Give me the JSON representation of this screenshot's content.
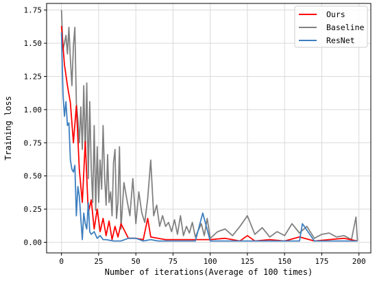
{
  "chart_data": {
    "type": "line",
    "xlabel": "Number of iterations(Average of 100 times)",
    "ylabel": "Training loss",
    "xlim": [
      -10,
      208
    ],
    "ylim": [
      -0.08,
      1.8
    ],
    "xticks": [
      "0",
      "25",
      "50",
      "75",
      "100",
      "125",
      "150",
      "175",
      "200"
    ],
    "yticks": [
      "0.00",
      "0.25",
      "0.50",
      "0.75",
      "1.00",
      "1.25",
      "1.50",
      "1.75"
    ],
    "grid": true,
    "legend_position": "top-right",
    "series": [
      {
        "name": "Ours",
        "color": "#ff0000",
        "x": [
          0,
          2,
          4,
          6,
          8,
          10,
          12,
          14,
          16,
          18,
          20,
          22,
          24,
          26,
          28,
          30,
          32,
          34,
          36,
          38,
          40,
          45,
          50,
          55,
          58,
          60,
          65,
          70,
          80,
          90,
          100,
          110,
          120,
          125,
          130,
          140,
          150,
          160,
          170,
          180,
          190,
          199
        ],
        "y": [
          1.63,
          1.34,
          1.18,
          1.05,
          0.75,
          1.03,
          0.55,
          0.3,
          0.76,
          0.22,
          0.32,
          0.1,
          0.25,
          0.08,
          0.18,
          0.05,
          0.16,
          0.02,
          0.12,
          0.04,
          0.14,
          0.03,
          0.03,
          0.02,
          0.18,
          0.04,
          0.03,
          0.02,
          0.02,
          0.02,
          0.02,
          0.03,
          0.01,
          0.05,
          0.01,
          0.02,
          0.01,
          0.04,
          0.01,
          0.02,
          0.03,
          0.01
        ]
      },
      {
        "name": "Baseline",
        "color": "#808080",
        "x": [
          0,
          1,
          2,
          3,
          4,
          5,
          6,
          7,
          8,
          9,
          10,
          11,
          12,
          13,
          14,
          15,
          16,
          17,
          18,
          19,
          20,
          21,
          22,
          23,
          24,
          25,
          26,
          27,
          28,
          29,
          30,
          31,
          32,
          33,
          34,
          35,
          36,
          37,
          38,
          39,
          40,
          42,
          44,
          46,
          48,
          50,
          52,
          54,
          56,
          58,
          60,
          62,
          64,
          66,
          68,
          70,
          72,
          74,
          76,
          78,
          80,
          82,
          84,
          86,
          88,
          90,
          92,
          94,
          96,
          98,
          100,
          105,
          110,
          115,
          120,
          125,
          130,
          135,
          140,
          145,
          150,
          155,
          160,
          165,
          170,
          175,
          180,
          185,
          190,
          195,
          198,
          199
        ],
        "y": [
          1.75,
          1.45,
          1.5,
          1.56,
          1.42,
          1.62,
          1.38,
          1.18,
          1.48,
          1.62,
          1.05,
          0.93,
          0.75,
          1.02,
          0.7,
          1.18,
          0.66,
          1.2,
          0.48,
          1.06,
          0.56,
          0.3,
          0.88,
          0.24,
          0.72,
          0.3,
          0.62,
          0.4,
          0.88,
          0.5,
          0.28,
          0.66,
          0.3,
          0.38,
          0.2,
          0.6,
          0.7,
          0.18,
          0.3,
          0.72,
          0.1,
          0.45,
          0.32,
          0.2,
          0.48,
          0.14,
          0.38,
          0.22,
          0.15,
          0.33,
          0.62,
          0.2,
          0.28,
          0.12,
          0.2,
          0.12,
          0.15,
          0.08,
          0.17,
          0.06,
          0.2,
          0.05,
          0.12,
          0.07,
          0.15,
          0.04,
          0.09,
          0.14,
          0.05,
          0.18,
          0.03,
          0.08,
          0.1,
          0.05,
          0.12,
          0.2,
          0.06,
          0.11,
          0.04,
          0.08,
          0.05,
          0.14,
          0.07,
          0.12,
          0.03,
          0.06,
          0.07,
          0.04,
          0.05,
          0.02,
          0.19,
          0.01
        ]
      },
      {
        "name": "ResNet",
        "color": "#3c7ebf",
        "x": [
          0,
          1,
          2,
          3,
          4,
          5,
          6,
          7,
          8,
          9,
          10,
          11,
          12,
          13,
          14,
          15,
          16,
          17,
          18,
          19,
          20,
          22,
          24,
          26,
          28,
          30,
          35,
          40,
          45,
          50,
          55,
          60,
          65,
          70,
          80,
          90,
          95,
          100,
          110,
          120,
          125,
          130,
          140,
          150,
          160,
          162,
          170,
          180,
          190,
          199
        ],
        "y": [
          1.58,
          1.12,
          0.95,
          1.06,
          0.88,
          0.9,
          0.62,
          0.55,
          0.53,
          0.58,
          0.2,
          0.42,
          0.35,
          0.18,
          0.02,
          0.22,
          0.14,
          0.1,
          0.3,
          0.08,
          0.06,
          0.08,
          0.03,
          0.05,
          0.02,
          0.02,
          0.01,
          0.01,
          0.03,
          0.03,
          0.01,
          0.02,
          0.01,
          0.01,
          0.01,
          0.01,
          0.22,
          0.01,
          0.01,
          0.01,
          0.01,
          0.01,
          0.01,
          0.01,
          0.01,
          0.14,
          0.01,
          0.01,
          0.01,
          0.01
        ]
      }
    ]
  }
}
